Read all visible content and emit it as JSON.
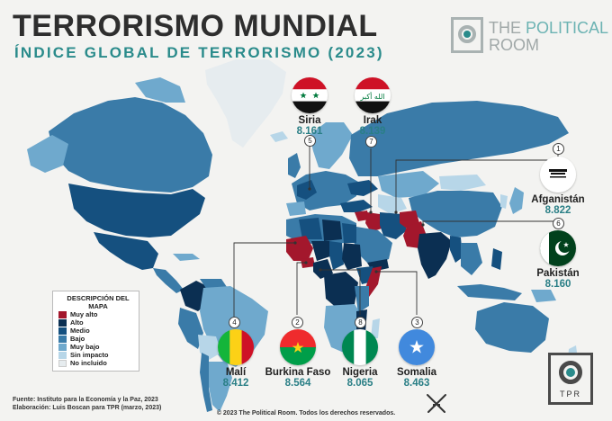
{
  "header": {
    "title": "TERRORISMO MUNDIAL",
    "subtitle": "ÍNDICE GLOBAL DE TERRORISMO (2023)"
  },
  "brand": {
    "line1_a": "THE ",
    "line1_b": "POLITICAL",
    "line2": "ROOM",
    "badge_text": "TPR"
  },
  "countries": [
    {
      "rank": "1",
      "name": "Afganistán",
      "score": "8.822",
      "flag_icon": "afghanistan-flag-icon"
    },
    {
      "rank": "2",
      "name": "Burkina Faso",
      "score": "8.564",
      "flag_icon": "burkina-faso-flag-icon"
    },
    {
      "rank": "3",
      "name": "Somalia",
      "score": "8.463",
      "flag_icon": "somalia-flag-icon"
    },
    {
      "rank": "4",
      "name": "Malí",
      "score": "8.412",
      "flag_icon": "mali-flag-icon"
    },
    {
      "rank": "5",
      "name": "Siria",
      "score": "8.161",
      "flag_icon": "syria-flag-icon"
    },
    {
      "rank": "6",
      "name": "Pakistán",
      "score": "8.160",
      "flag_icon": "pakistan-flag-icon"
    },
    {
      "rank": "7",
      "name": "Irak",
      "score": "8.139",
      "flag_icon": "iraq-flag-icon"
    },
    {
      "rank": "8",
      "name": "Nigeria",
      "score": "8.065",
      "flag_icon": "nigeria-flag-icon"
    }
  ],
  "legend": {
    "title": "DESCRIPCIÓN DEL MAPA",
    "items": [
      {
        "label": "Muy alto",
        "color": "#a3172c"
      },
      {
        "label": "Alto",
        "color": "#0b2f52"
      },
      {
        "label": "Medio",
        "color": "#15507f"
      },
      {
        "label": "Bajo",
        "color": "#3a7ba8"
      },
      {
        "label": "Muy bajo",
        "color": "#6fa9cd"
      },
      {
        "label": "Sin impacto",
        "color": "#b7d6e8"
      },
      {
        "label": "No incluido",
        "color": "#e6ecef"
      }
    ]
  },
  "footer": {
    "source": "Fuente: Instituto para la Economía y la Paz, 2023",
    "credit": "Elaboración: Luis Boscan para TPR (marzo, 2023)",
    "copyright": "© 2023 The Political Room. Todos los derechos reservados."
  },
  "colors": {
    "title": "#2e2e2e",
    "subtitle": "#2a8b8b",
    "score": "#2a7f86",
    "ocean": "#f3f3f1"
  }
}
